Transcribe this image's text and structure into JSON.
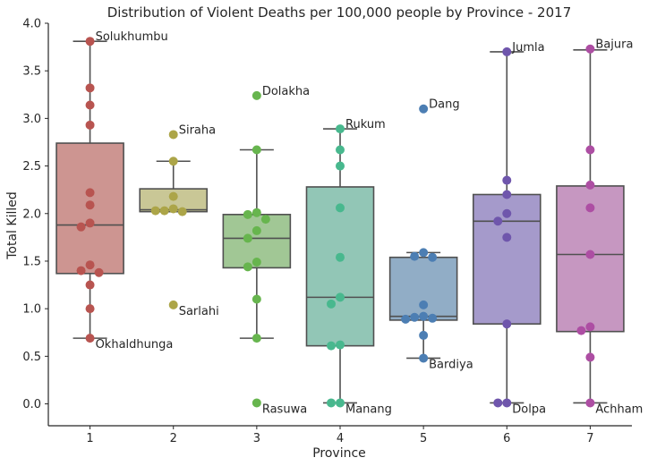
{
  "chart_data": {
    "type": "box",
    "title": "Distribution of Violent Deaths per 100,000 people by Province - 2017",
    "xlabel": "Province",
    "ylabel": "Total Killed",
    "ylim": [
      -0.23,
      4.0
    ],
    "yticks": [
      "0.0",
      "0.5",
      "1.0",
      "1.5",
      "2.0",
      "2.5",
      "3.0",
      "3.5",
      "4.0"
    ],
    "grid": false,
    "categories": [
      "1",
      "2",
      "3",
      "4",
      "5",
      "6",
      "7"
    ],
    "colors": {
      "box": [
        "#cd9591",
        "#c9c796",
        "#a1c795",
        "#92c6b6",
        "#91adc6",
        "#a59acb",
        "#c697c1"
      ],
      "points": [
        "#b85450",
        "#aca548",
        "#67b54e",
        "#48b88e",
        "#4c7eb3",
        "#6f56ac",
        "#ad4ea3"
      ],
      "lines": "#505050"
    },
    "boxes": [
      {
        "q1": 1.37,
        "median": 1.88,
        "q3": 2.74,
        "whisker_low": 0.69,
        "whisker_high": 3.81
      },
      {
        "q1": 2.02,
        "median": 2.04,
        "q3": 2.26,
        "whisker_low": 2.02,
        "whisker_high": 2.55
      },
      {
        "q1": 1.43,
        "median": 1.74,
        "q3": 1.99,
        "whisker_low": 0.69,
        "whisker_high": 2.67
      },
      {
        "q1": 0.61,
        "median": 1.12,
        "q3": 2.28,
        "whisker_low": 0.01,
        "whisker_high": 2.89
      },
      {
        "q1": 0.88,
        "median": 0.92,
        "q3": 1.54,
        "whisker_low": 0.48,
        "whisker_high": 1.59
      },
      {
        "q1": 0.84,
        "median": 1.92,
        "q3": 2.2,
        "whisker_low": 0.01,
        "whisker_high": 3.7
      },
      {
        "q1": 0.76,
        "median": 1.57,
        "q3": 2.29,
        "whisker_low": 0.01,
        "whisker_high": 3.72
      }
    ],
    "points": [
      [
        3.81,
        3.32,
        3.14,
        2.93,
        2.22,
        2.09,
        1.9,
        1.86,
        1.46,
        1.4,
        1.38,
        1.25,
        1.0,
        0.69
      ],
      [
        2.83,
        2.55,
        2.18,
        2.05,
        2.03,
        2.02,
        2.03,
        1.04
      ],
      [
        3.24,
        2.67,
        2.01,
        1.99,
        1.94,
        1.82,
        1.74,
        1.49,
        1.44,
        1.1,
        0.69,
        0.01
      ],
      [
        2.89,
        2.67,
        2.5,
        2.06,
        1.54,
        1.12,
        1.05,
        0.62,
        0.61,
        0.01,
        0.01
      ],
      [
        3.1,
        1.59,
        1.55,
        1.54,
        1.04,
        0.92,
        0.91,
        0.9,
        0.89,
        0.72,
        0.48
      ],
      [
        3.7,
        2.35,
        2.2,
        2.0,
        1.92,
        1.75,
        0.84,
        0.01,
        0.01
      ],
      [
        3.73,
        2.67,
        2.3,
        2.06,
        1.57,
        0.81,
        0.77,
        0.49,
        0.01
      ]
    ],
    "annotations": [
      {
        "province": "1",
        "value": 3.81,
        "text": "Solukhumbu"
      },
      {
        "province": "1",
        "value": 0.69,
        "text": "Okhaldhunga"
      },
      {
        "province": "2",
        "value": 2.83,
        "text": "Siraha"
      },
      {
        "province": "2",
        "value": 1.04,
        "text": "Sarlahi"
      },
      {
        "province": "3",
        "value": 3.24,
        "text": "Dolakha"
      },
      {
        "province": "3",
        "value": 0.01,
        "text": "Rasuwa"
      },
      {
        "province": "4",
        "value": 2.89,
        "text": "Rukum"
      },
      {
        "province": "4",
        "value": 0.01,
        "text": "Manang"
      },
      {
        "province": "5",
        "value": 3.1,
        "text": "Dang"
      },
      {
        "province": "5",
        "value": 0.48,
        "text": "Bardiya"
      },
      {
        "province": "6",
        "value": 3.7,
        "text": "Jumla"
      },
      {
        "province": "6",
        "value": 0.01,
        "text": "Dolpa"
      },
      {
        "province": "7",
        "value": 3.73,
        "text": "Bajura"
      },
      {
        "province": "7",
        "value": 0.01,
        "text": "Achham"
      }
    ]
  }
}
